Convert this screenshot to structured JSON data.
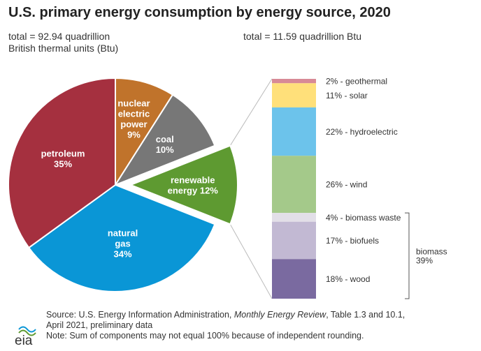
{
  "title": "U.S. primary energy consumption by energy source, 2020",
  "total_left_line1": "total = 92.94 quadrillion",
  "total_left_line2": "British thermal units (Btu)",
  "total_right": "total = 11.59 quadrillion Btu",
  "source_pre": "Source: U.S. Energy Information Administration, ",
  "source_italic": "Monthly Energy Review",
  "source_post": ", Table 1.3 and 10.1,",
  "source_line2": "April 2021, preliminary data",
  "note": "Note: Sum of components may not equal 100% because of independent rounding.",
  "logo_text": "eia",
  "chart_data": [
    {
      "type": "pie",
      "slices": [
        {
          "label_lines": [
            "nuclear",
            "electric",
            "power"
          ],
          "value_label": "9%",
          "value": 9,
          "color": "#c0732b"
        },
        {
          "label_lines": [
            "coal"
          ],
          "value_label": "10%",
          "value": 10,
          "color": "#777777"
        },
        {
          "label_lines": [
            "renewable",
            "energy 12%"
          ],
          "value_label": "",
          "value": 12,
          "color": "#5e9a31"
        },
        {
          "label_lines": [
            "natural",
            "gas"
          ],
          "value_label": "34%",
          "value": 34,
          "color": "#0a96d6"
        },
        {
          "label_lines": [
            "petroleum"
          ],
          "value_label": "35%",
          "value": 35,
          "color": "#a5303f"
        }
      ]
    },
    {
      "type": "bar",
      "stacked": true,
      "segments": [
        {
          "label": "2% - geothermal",
          "value": 2,
          "color": "#d88a96"
        },
        {
          "label": "11% - solar",
          "value": 11,
          "color": "#ffe07a"
        },
        {
          "label": "22% - hydroelectric",
          "value": 22,
          "color": "#6cc3eb"
        },
        {
          "label": "26% - wind",
          "value": 26,
          "color": "#a4c98a"
        },
        {
          "label": "4% - biomass waste",
          "value": 4,
          "color": "#e2dfe8"
        },
        {
          "label": "17% - biofuels",
          "value": 17,
          "color": "#c2b9d3"
        },
        {
          "label": "18% - wood",
          "value": 18,
          "color": "#7a6aa0"
        }
      ],
      "group_label_lines": [
        "biomass",
        "39%"
      ]
    }
  ]
}
